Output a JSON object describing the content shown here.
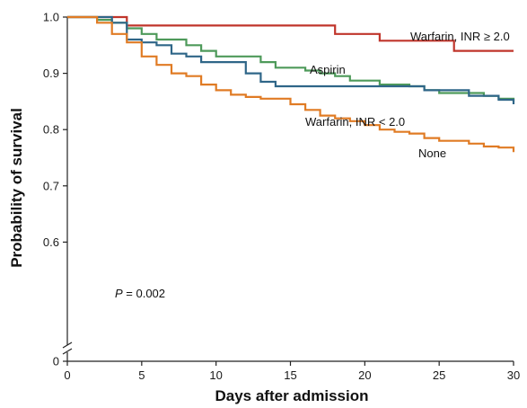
{
  "chart_data": {
    "type": "line",
    "step": true,
    "xlabel": "Days after admission",
    "ylabel": "Probability of survival",
    "xlim": [
      0,
      30
    ],
    "ylim": [
      0.5,
      1.0
    ],
    "axis_break": "y",
    "x_ticks": [
      0,
      5,
      10,
      15,
      20,
      25,
      30
    ],
    "y_ticks": [
      0,
      0.6,
      0.7,
      0.8,
      0.9,
      1.0
    ],
    "y_tick_labels": [
      "0",
      "0.6",
      "0.7",
      "0.8",
      "0.9",
      "1.0"
    ],
    "annotation": {
      "p_italic": "P",
      "p_rest": " = 0.002"
    },
    "series": [
      {
        "name": "Warfarin, INR ≥ 2.0",
        "color": "#c0352b",
        "points": [
          [
            0,
            1.0
          ],
          [
            4,
            0.985
          ],
          [
            18,
            0.97
          ],
          [
            21,
            0.958
          ],
          [
            26,
            0.94
          ],
          [
            30,
            0.94
          ]
        ]
      },
      {
        "name": "Aspirin",
        "color": "#4e9a5a",
        "points": [
          [
            0,
            1.0
          ],
          [
            2,
            0.995
          ],
          [
            3,
            0.99
          ],
          [
            4,
            0.98
          ],
          [
            5,
            0.97
          ],
          [
            6,
            0.96
          ],
          [
            8,
            0.95
          ],
          [
            9,
            0.94
          ],
          [
            10,
            0.93
          ],
          [
            13,
            0.92
          ],
          [
            14,
            0.91
          ],
          [
            16,
            0.905
          ],
          [
            17,
            0.9
          ],
          [
            18,
            0.895
          ],
          [
            19,
            0.887
          ],
          [
            21,
            0.88
          ],
          [
            23,
            0.877
          ],
          [
            24,
            0.87
          ],
          [
            25,
            0.865
          ],
          [
            28,
            0.86
          ],
          [
            29,
            0.855
          ],
          [
            30,
            0.85
          ]
        ]
      },
      {
        "name": "Warfarin, INR < 2.0",
        "color": "#2f6688",
        "points": [
          [
            0,
            1.0
          ],
          [
            3,
            0.99
          ],
          [
            4,
            0.96
          ],
          [
            5,
            0.955
          ],
          [
            6,
            0.95
          ],
          [
            7,
            0.935
          ],
          [
            8,
            0.93
          ],
          [
            9,
            0.92
          ],
          [
            12,
            0.9
          ],
          [
            13,
            0.885
          ],
          [
            14,
            0.877
          ],
          [
            17,
            0.877
          ],
          [
            24,
            0.87
          ],
          [
            27,
            0.86
          ],
          [
            29,
            0.853
          ],
          [
            30,
            0.845
          ]
        ]
      },
      {
        "name": "None",
        "color": "#e07b24",
        "points": [
          [
            0,
            1.0
          ],
          [
            2,
            0.99
          ],
          [
            3,
            0.97
          ],
          [
            4,
            0.955
          ],
          [
            5,
            0.93
          ],
          [
            6,
            0.915
          ],
          [
            7,
            0.9
          ],
          [
            8,
            0.895
          ],
          [
            9,
            0.88
          ],
          [
            10,
            0.87
          ],
          [
            11,
            0.862
          ],
          [
            12,
            0.858
          ],
          [
            13,
            0.855
          ],
          [
            15,
            0.845
          ],
          [
            16,
            0.835
          ],
          [
            17,
            0.825
          ],
          [
            18,
            0.82
          ],
          [
            19,
            0.815
          ],
          [
            20,
            0.808
          ],
          [
            21,
            0.8
          ],
          [
            22,
            0.796
          ],
          [
            23,
            0.793
          ],
          [
            24,
            0.785
          ],
          [
            25,
            0.78
          ],
          [
            27,
            0.775
          ],
          [
            28,
            0.77
          ],
          [
            29,
            0.768
          ],
          [
            30,
            0.76
          ]
        ]
      }
    ]
  }
}
